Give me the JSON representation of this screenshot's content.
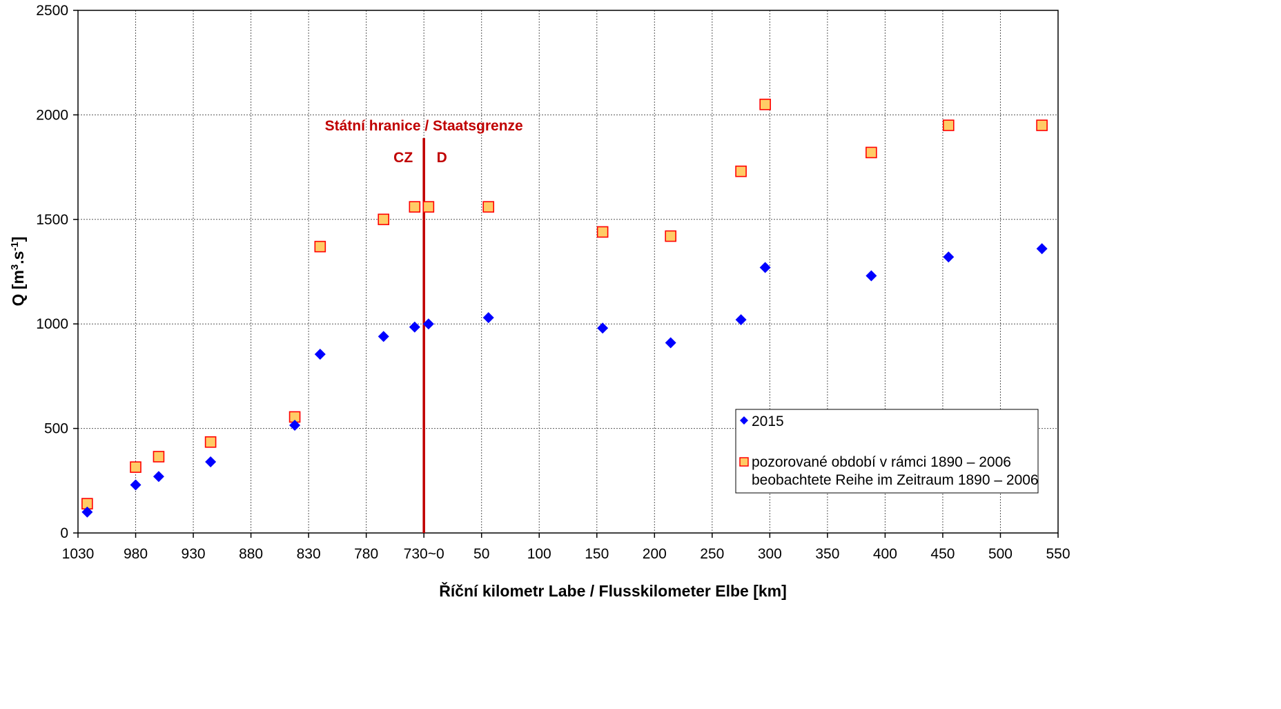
{
  "chart_data": {
    "type": "scatter",
    "xlabel": "Říční kilometr Labe / Flusskilometer Elbe [km]",
    "ylabel_main": "Q [m",
    "ylabel_sup1": "3",
    "ylabel_mid": ".s",
    "ylabel_sup2": "-1",
    "ylabel_end": "]",
    "ylim": [
      0,
      2500
    ],
    "y_ticks": [
      0,
      500,
      1000,
      1500,
      2000,
      2500
    ],
    "x_tick_labels": [
      "1030",
      "980",
      "930",
      "880",
      "830",
      "780",
      "730~0",
      "50",
      "100",
      "150",
      "200",
      "250",
      "300",
      "350",
      "400",
      "450",
      "500",
      "550"
    ],
    "grid": true,
    "border_line": {
      "position_tick": "730~0",
      "label": "Státní hranice / Staatsgrenze",
      "left_label": "CZ",
      "right_label": "D",
      "color": "#C00000"
    },
    "legend_position": "bottom-right",
    "series": [
      {
        "name": "2015",
        "marker": "diamond",
        "color": "#0000FF",
        "points": [
          {
            "km": 1022,
            "cz": true,
            "q": 100
          },
          {
            "km": 980,
            "cz": true,
            "q": 230
          },
          {
            "km": 960,
            "cz": true,
            "q": 270
          },
          {
            "km": 915,
            "cz": true,
            "q": 340
          },
          {
            "km": 842,
            "cz": true,
            "q": 515
          },
          {
            "km": 820,
            "cz": true,
            "q": 855
          },
          {
            "km": 765,
            "cz": true,
            "q": 940
          },
          {
            "km": 738,
            "cz": true,
            "q": 985
          },
          {
            "km": 4,
            "cz": false,
            "q": 1000
          },
          {
            "km": 56,
            "cz": false,
            "q": 1030
          },
          {
            "km": 155,
            "cz": false,
            "q": 980
          },
          {
            "km": 214,
            "cz": false,
            "q": 910
          },
          {
            "km": 275,
            "cz": false,
            "q": 1020
          },
          {
            "km": 296,
            "cz": false,
            "q": 1270
          },
          {
            "km": 388,
            "cz": false,
            "q": 1230
          },
          {
            "km": 455,
            "cz": false,
            "q": 1320
          },
          {
            "km": 536,
            "cz": false,
            "q": 1360
          }
        ]
      },
      {
        "name_line1": "pozorované období v rámci 1890 – 2006",
        "name_line2": "beobachtete Reihe im Zeitraum 1890 – 2006",
        "marker": "square",
        "fill": "#FFCC66",
        "stroke": "#FF0000",
        "points": [
          {
            "km": 1022,
            "cz": true,
            "q": 140
          },
          {
            "km": 980,
            "cz": true,
            "q": 315
          },
          {
            "km": 960,
            "cz": true,
            "q": 365
          },
          {
            "km": 915,
            "cz": true,
            "q": 435
          },
          {
            "km": 842,
            "cz": true,
            "q": 555
          },
          {
            "km": 820,
            "cz": true,
            "q": 1370
          },
          {
            "km": 765,
            "cz": true,
            "q": 1500
          },
          {
            "km": 738,
            "cz": true,
            "q": 1560
          },
          {
            "km": 4,
            "cz": false,
            "q": 1560
          },
          {
            "km": 56,
            "cz": false,
            "q": 1560
          },
          {
            "km": 155,
            "cz": false,
            "q": 1440
          },
          {
            "km": 214,
            "cz": false,
            "q": 1420
          },
          {
            "km": 275,
            "cz": false,
            "q": 1730
          },
          {
            "km": 296,
            "cz": false,
            "q": 2050
          },
          {
            "km": 388,
            "cz": false,
            "q": 1820
          },
          {
            "km": 455,
            "cz": false,
            "q": 1950
          },
          {
            "km": 536,
            "cz": false,
            "q": 1950
          }
        ]
      }
    ]
  }
}
